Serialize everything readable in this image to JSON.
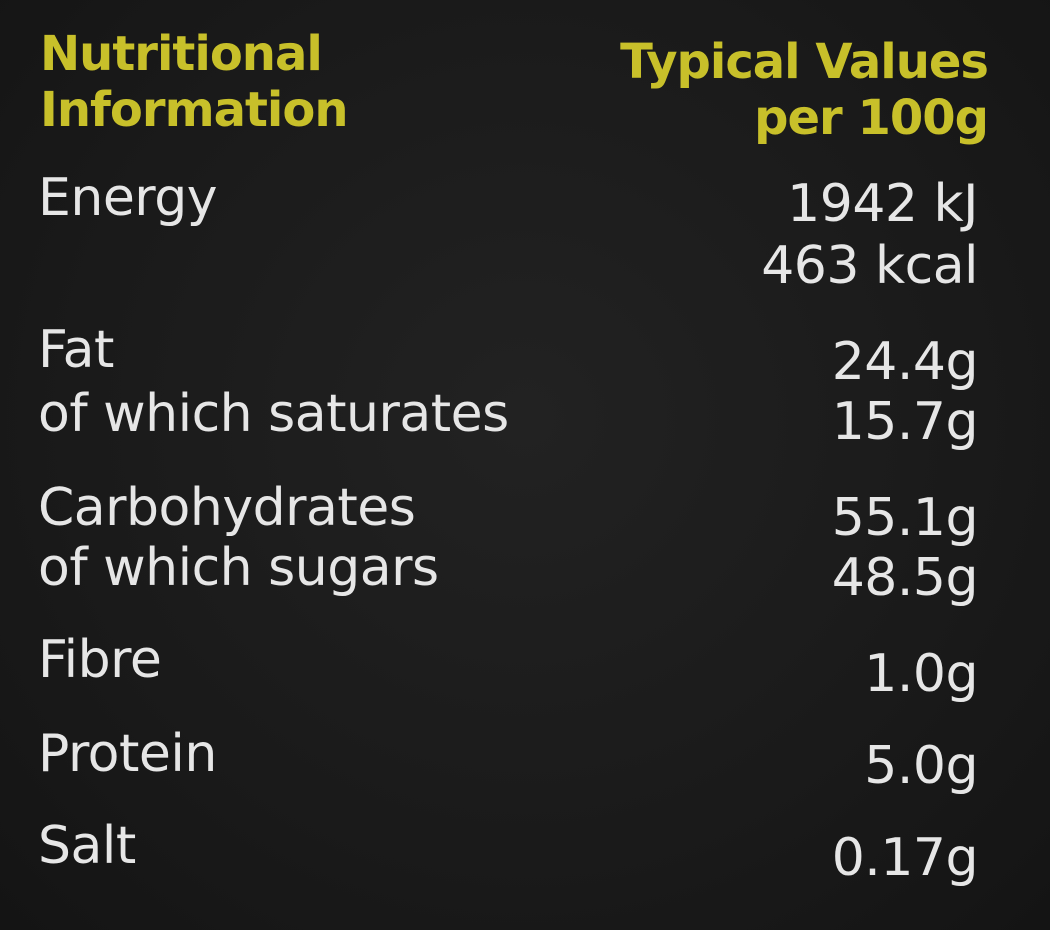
{
  "header": {
    "title_line1": "Nutritional",
    "title_line2": "Information",
    "values_line1": "Typical Values",
    "values_line2": "per 100g"
  },
  "nutrients": {
    "energy": {
      "label": "Energy",
      "value_kj": "1942 kJ",
      "value_kcal": "463 kcal"
    },
    "fat": {
      "label": "Fat",
      "value": "24.4g"
    },
    "saturates": {
      "label": "of which saturates",
      "value": "15.7g"
    },
    "carbohydrates": {
      "label": "Carbohydrates",
      "value": "55.1g"
    },
    "sugars": {
      "label": "of which sugars",
      "value": "48.5g"
    },
    "fibre": {
      "label": "Fibre",
      "value": "1.0g"
    },
    "protein": {
      "label": "Protein",
      "value": "5.0g"
    },
    "salt": {
      "label": "Salt",
      "value": "0.17g"
    }
  },
  "colors": {
    "background": "#1b1b1b",
    "header_text": "#c8c02a",
    "body_text": "#e6e6e6"
  }
}
